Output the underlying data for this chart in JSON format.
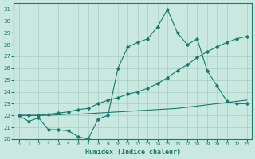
{
  "xlabel": "Humidex (Indice chaleur)",
  "x_values": [
    0,
    1,
    2,
    3,
    4,
    5,
    6,
    7,
    8,
    9,
    10,
    11,
    12,
    13,
    14,
    15,
    16,
    17,
    18,
    19,
    20,
    21,
    22,
    23
  ],
  "line1_zigzag": [
    22,
    21.5,
    21.8,
    20.8,
    20.8,
    20.7,
    20.2,
    20.0,
    21.7,
    22.0,
    26.0,
    27.8,
    28.2,
    28.5,
    29.5,
    31.0,
    29.0,
    28.0,
    28.5,
    25.8,
    24.5,
    23.2,
    23.0,
    23.0
  ],
  "line2_diagonal": [
    22,
    22,
    22,
    22.1,
    22.2,
    22.3,
    22.5,
    22.6,
    23.0,
    23.3,
    23.5,
    23.8,
    24.0,
    24.3,
    24.7,
    25.2,
    25.8,
    26.3,
    26.9,
    27.4,
    27.8,
    28.2,
    28.5,
    28.7
  ],
  "line3_flat": [
    22,
    22,
    22,
    22,
    22.05,
    22.1,
    22.1,
    22.15,
    22.2,
    22.25,
    22.3,
    22.35,
    22.4,
    22.45,
    22.5,
    22.55,
    22.6,
    22.7,
    22.8,
    22.9,
    23.0,
    23.1,
    23.2,
    23.3
  ],
  "ylim": [
    20,
    31.5
  ],
  "yticks": [
    20,
    21,
    22,
    23,
    24,
    25,
    26,
    27,
    28,
    29,
    30,
    31
  ],
  "line_color": "#1a7a6e",
  "bg_color": "#c8e8e0",
  "grid_color": "#a8ccc4",
  "figsize": [
    3.2,
    2.0
  ],
  "dpi": 100
}
